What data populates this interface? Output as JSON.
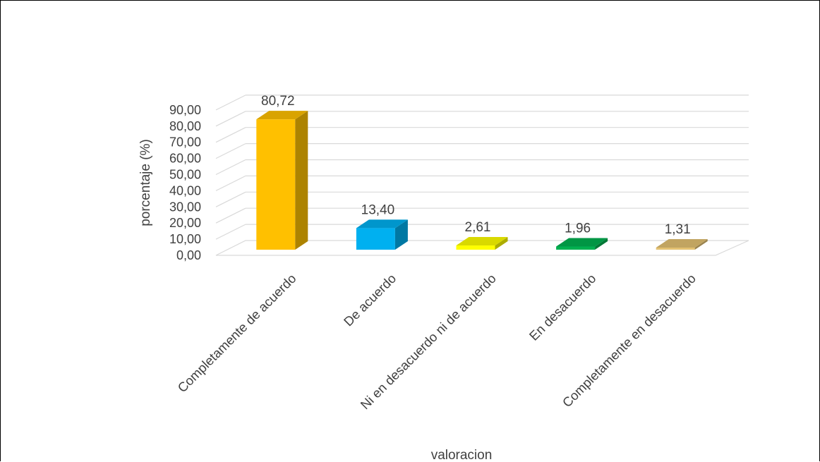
{
  "chart_data": {
    "type": "bar",
    "title": "",
    "xlabel": "valoracion",
    "ylabel": "porcentaje (%)",
    "ylim": [
      0,
      90
    ],
    "y_ticks": [
      "0,00",
      "10,00",
      "20,00",
      "30,00",
      "40,00",
      "50,00",
      "60,00",
      "70,00",
      "80,00",
      "90,00"
    ],
    "grid": true,
    "legend": "none",
    "categories": [
      "Completamente de acuerdo",
      "De acuerdo",
      "Ni en desacuerdo ni de acuerdo",
      "En desacuerdo",
      "Completamente en desacuerdo"
    ],
    "values": [
      80.72,
      13.4,
      2.61,
      1.96,
      1.31
    ],
    "value_labels": [
      "80,72",
      "13,40",
      "2,61",
      "1,96",
      "1,31"
    ],
    "colors": [
      "#FFC000",
      "#00B0F0",
      "#FFFF00",
      "#00B050",
      "#E3C172"
    ]
  }
}
